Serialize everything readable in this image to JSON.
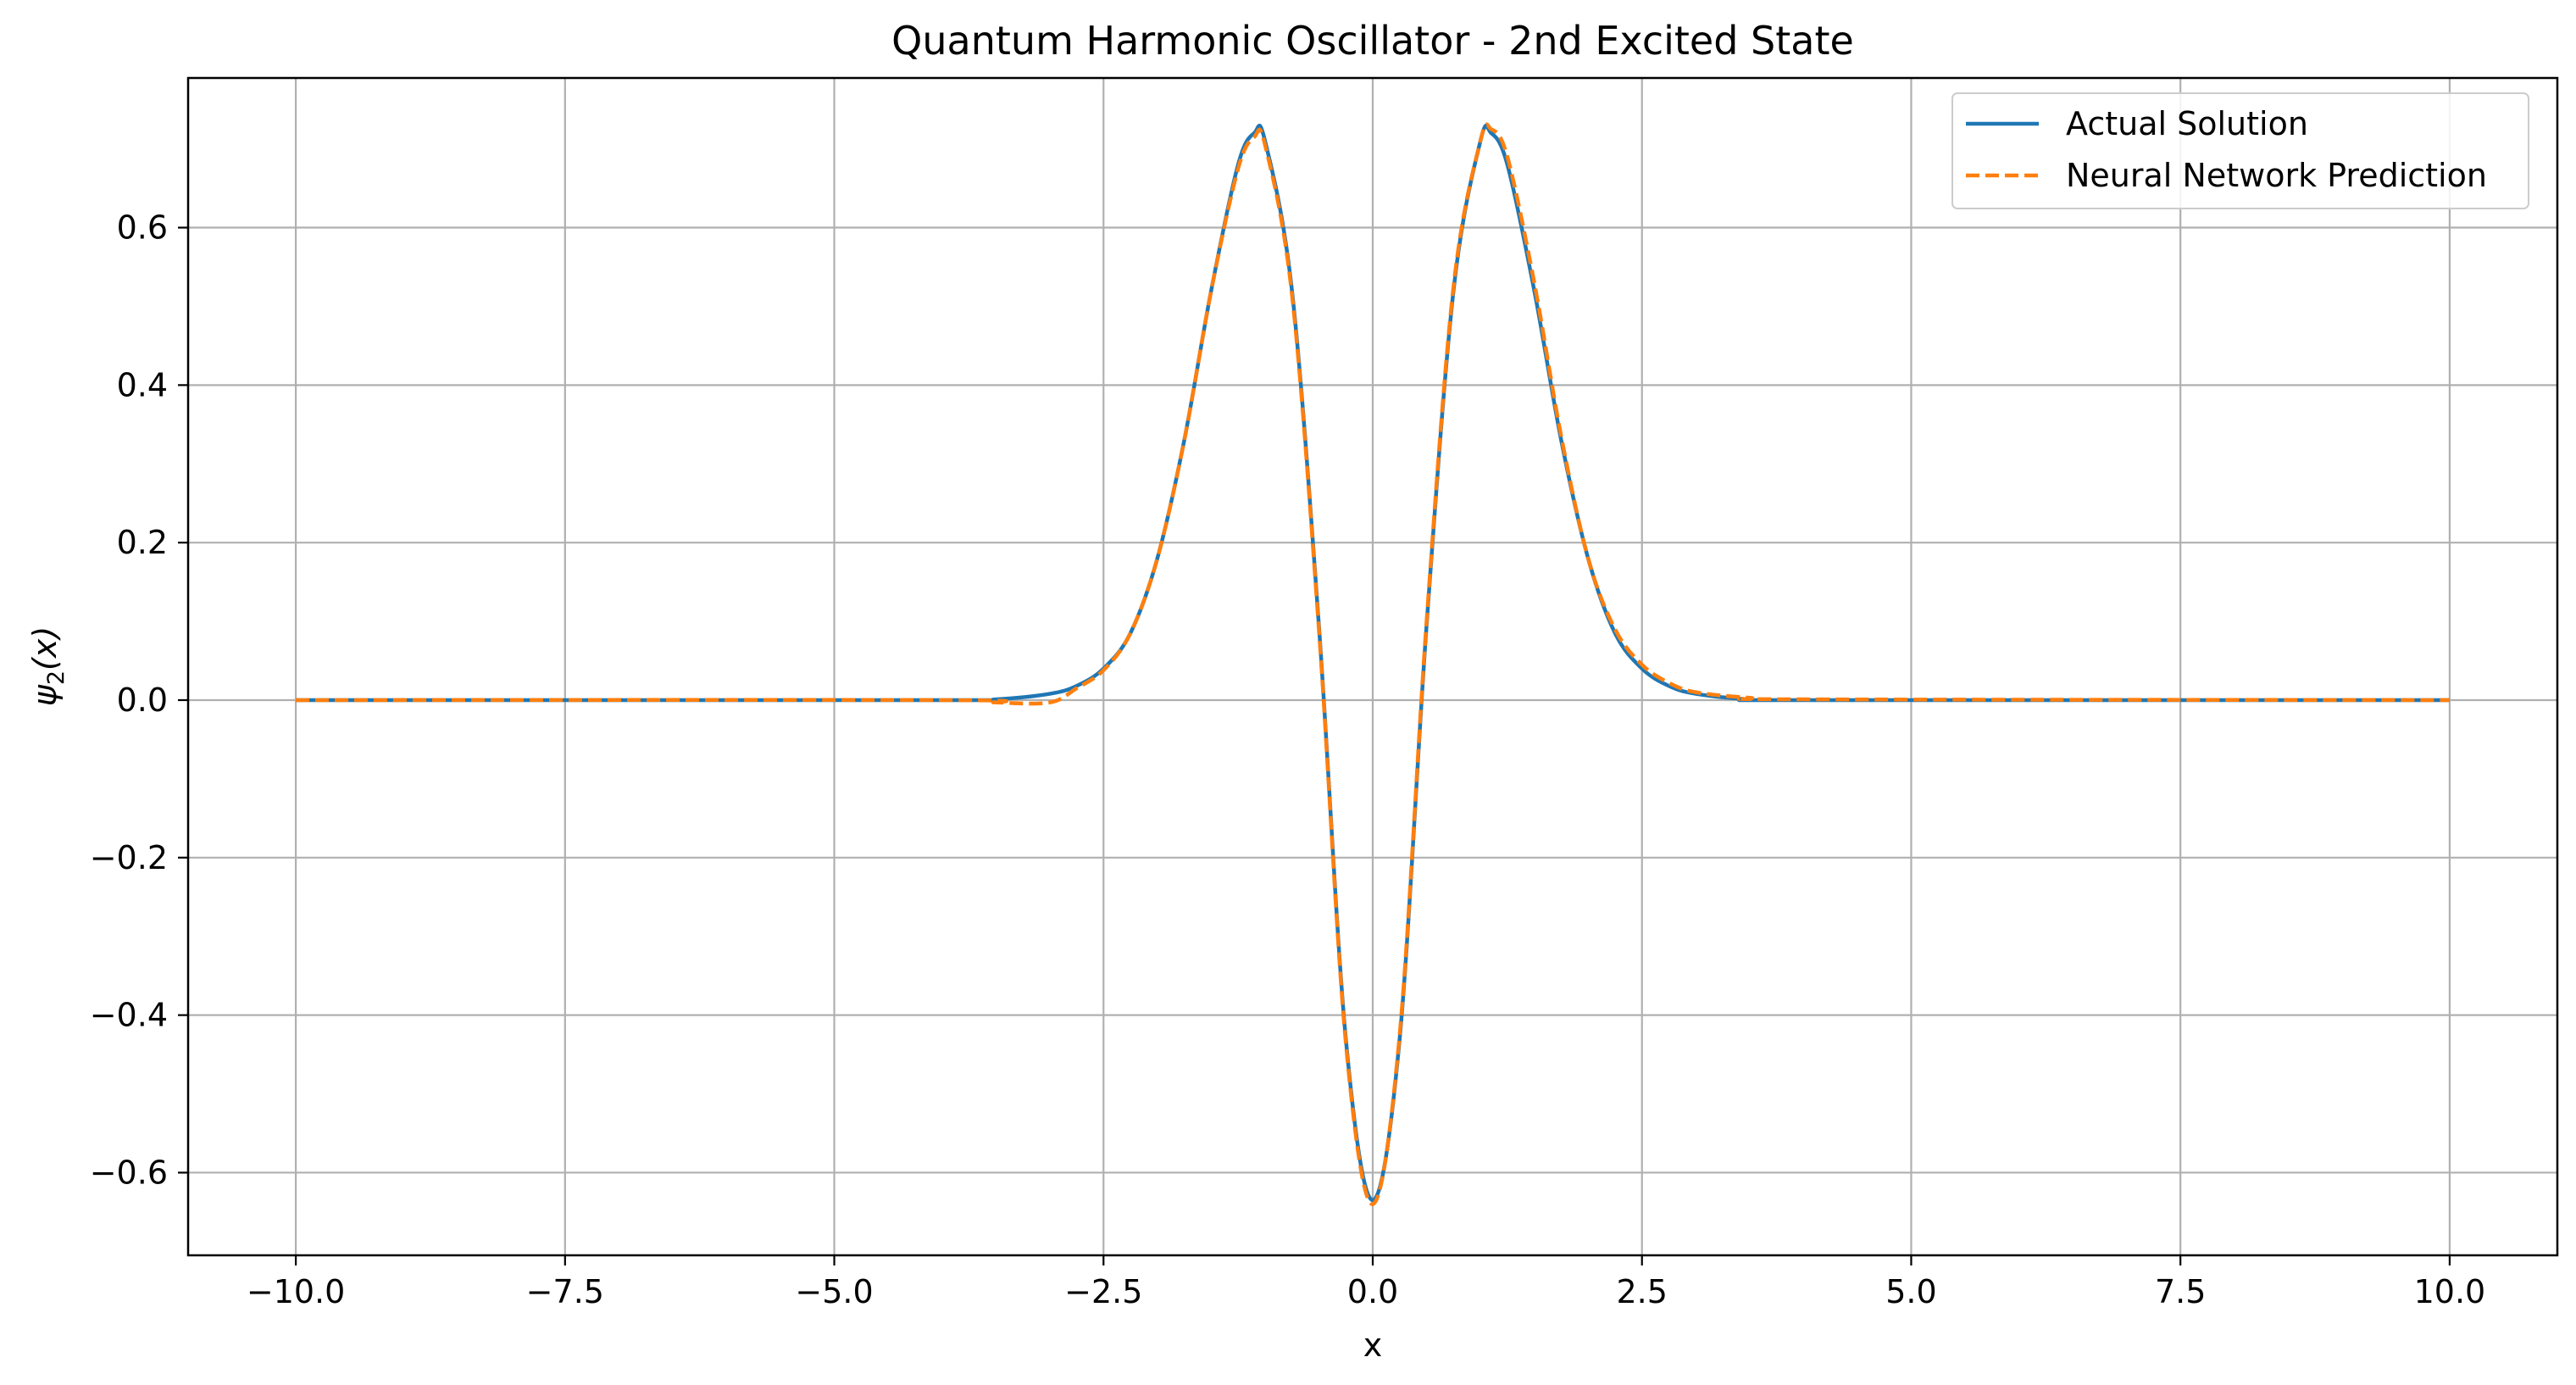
{
  "chart_data": {
    "type": "line",
    "title": "Quantum Harmonic Oscillator - 2nd Excited State",
    "xlabel": "x",
    "ylabel": "ψ2(x)",
    "ylabel_main": "ψ",
    "ylabel_sub": "2",
    "ylabel_tail": "(x)",
    "xlim": [
      -11,
      11
    ],
    "ylim": [
      -0.705,
      0.79
    ],
    "x_ticks": [
      -10.0,
      -7.5,
      -5.0,
      -2.5,
      0.0,
      2.5,
      5.0,
      7.5,
      10.0
    ],
    "x_tick_labels": [
      "−10.0",
      "−7.5",
      "−5.0",
      "−2.5",
      "0.0",
      "2.5",
      "5.0",
      "7.5",
      "10.0"
    ],
    "y_ticks": [
      -0.6,
      -0.4,
      -0.2,
      0.0,
      0.2,
      0.4,
      0.6
    ],
    "y_tick_labels": [
      "−0.6",
      "−0.4",
      "−0.2",
      "0.0",
      "0.2",
      "0.4",
      "0.6"
    ],
    "grid": true,
    "legend_position": "top-right",
    "series": [
      {
        "name": "Actual Solution",
        "color": "#1f77b4",
        "style": "solid",
        "x": [
          -10,
          -4,
          -3.5,
          -3,
          -2.75,
          -2.5,
          -2.25,
          -2,
          -1.75,
          -1.5,
          -1.25,
          -1.1,
          -1,
          -0.75,
          -0.5,
          -0.25,
          0,
          0.25,
          0.5,
          0.75,
          1,
          1.1,
          1.25,
          1.5,
          1.75,
          2,
          2.25,
          2.5,
          2.75,
          3,
          3.5,
          4,
          10
        ],
        "y": [
          0.0,
          0.0,
          0.001,
          0.008,
          0.018,
          0.04,
          0.085,
          0.18,
          0.33,
          0.52,
          0.68,
          0.72,
          0.71,
          0.52,
          0.095,
          -0.43,
          -0.635,
          -0.43,
          0.095,
          0.52,
          0.71,
          0.72,
          0.68,
          0.52,
          0.33,
          0.18,
          0.085,
          0.04,
          0.018,
          0.008,
          0.001,
          0.0,
          0.0
        ]
      },
      {
        "name": "Neural Network Prediction",
        "color": "#ff7f0e",
        "style": "dashed",
        "x": [
          -10,
          -4,
          -3.5,
          -3,
          -2.75,
          -2.5,
          -2.25,
          -2,
          -1.75,
          -1.5,
          -1.25,
          -1.1,
          -1,
          -0.75,
          -0.5,
          -0.25,
          0,
          0.25,
          0.5,
          0.75,
          1,
          1.1,
          1.25,
          1.5,
          1.75,
          2,
          2.25,
          2.5,
          2.75,
          3,
          3.5,
          4,
          10
        ],
        "y": [
          0.0,
          0.0,
          -0.003,
          -0.003,
          0.015,
          0.038,
          0.085,
          0.18,
          0.33,
          0.52,
          0.675,
          0.715,
          0.705,
          0.515,
          0.09,
          -0.435,
          -0.64,
          -0.425,
          0.1,
          0.525,
          0.71,
          0.725,
          0.69,
          0.53,
          0.335,
          0.18,
          0.09,
          0.045,
          0.022,
          0.01,
          0.003,
          0.001,
          0.0
        ]
      }
    ]
  }
}
